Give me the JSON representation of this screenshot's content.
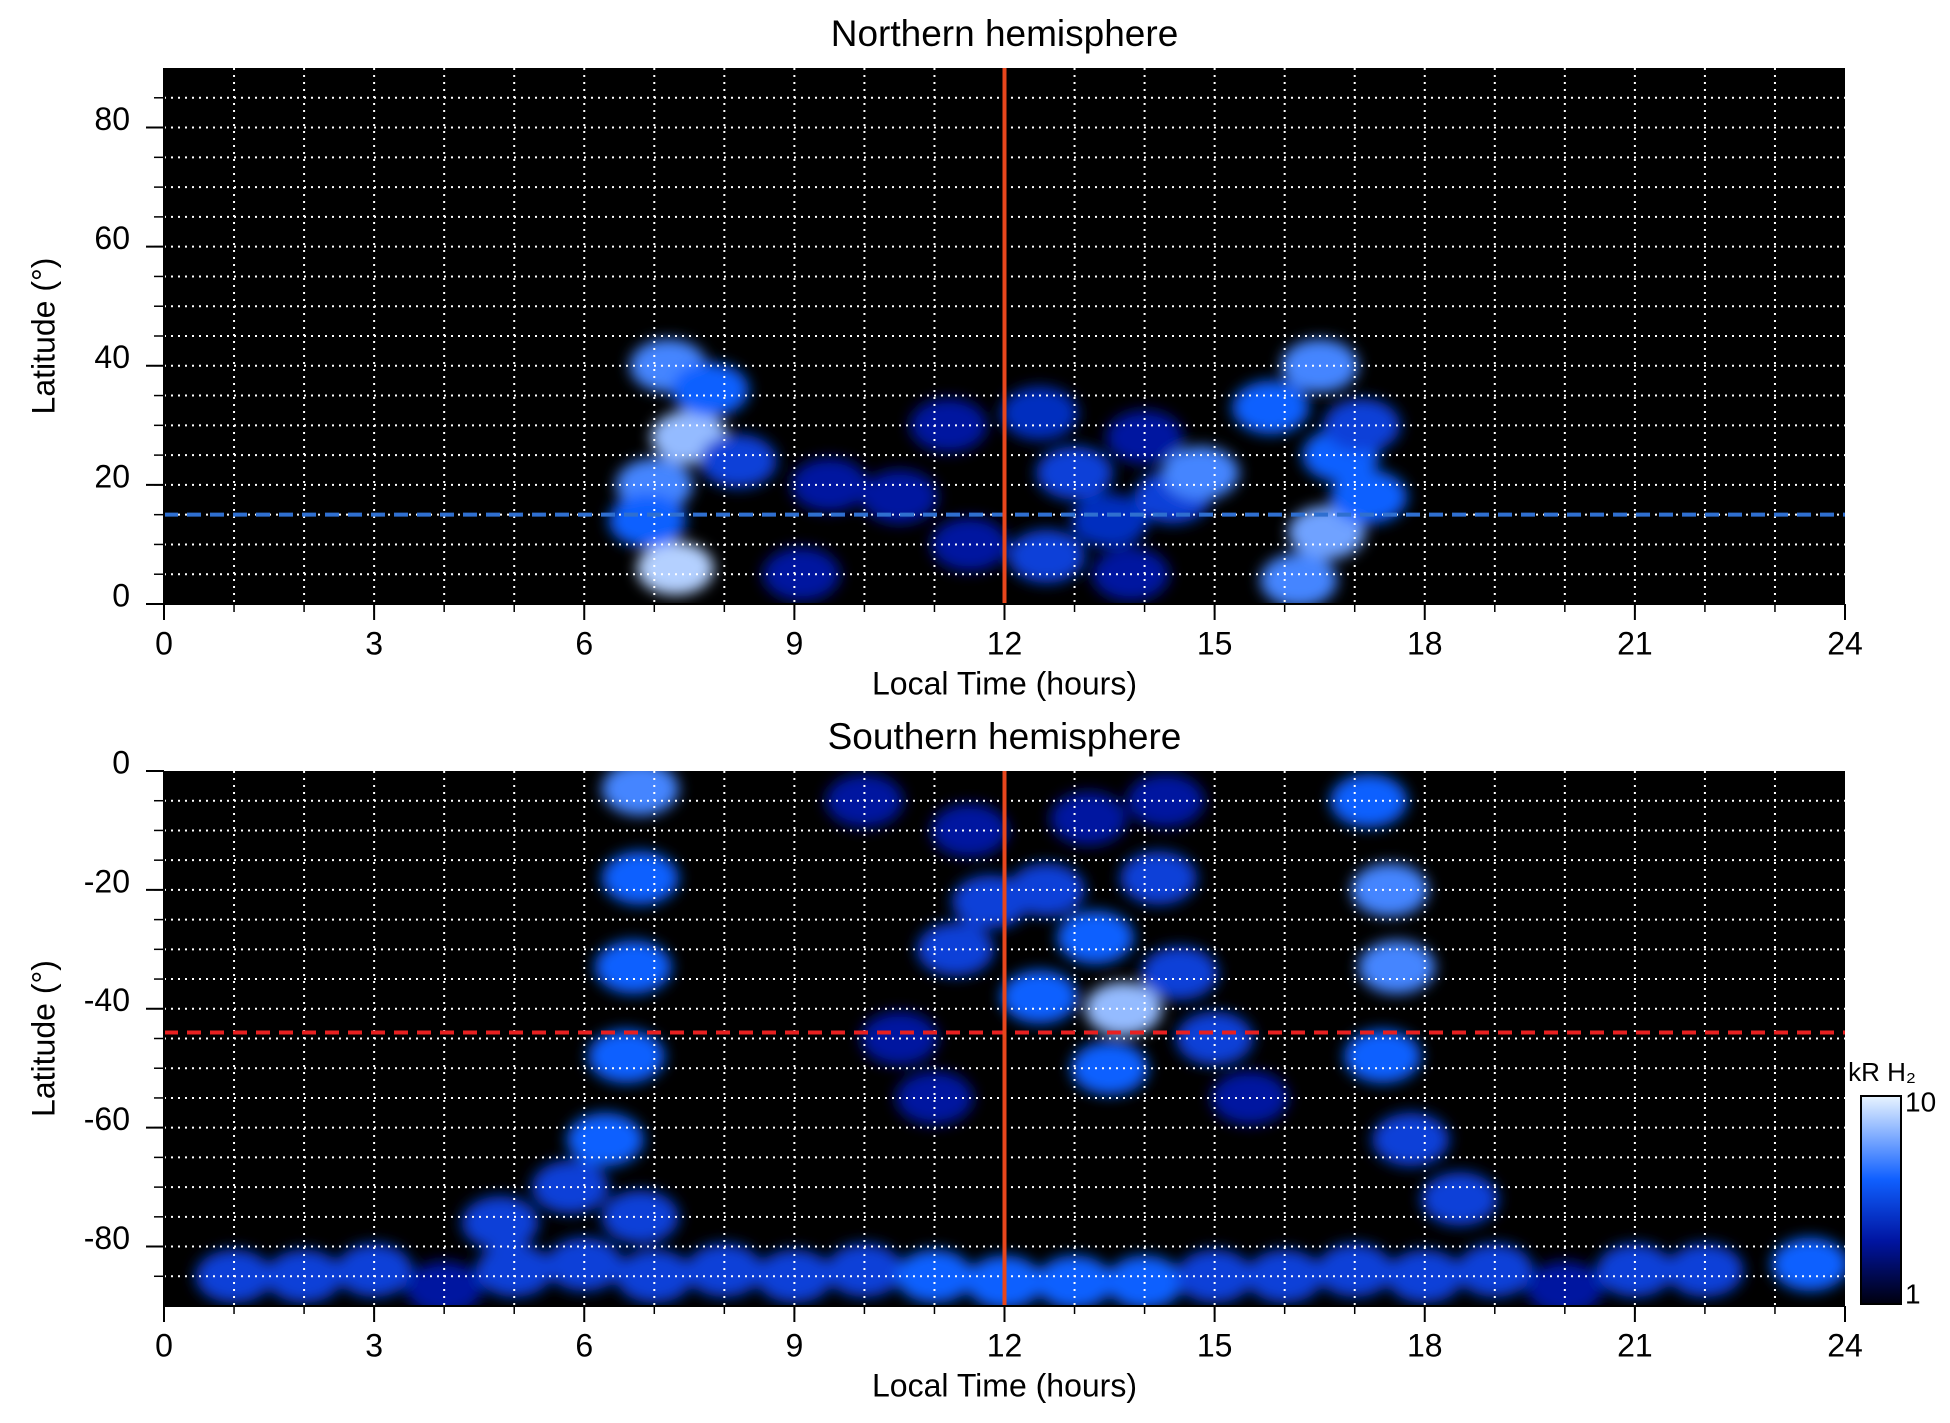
{
  "chart_data": [
    {
      "type": "heatmap",
      "title": "Northern hemisphere",
      "xlabel": "Local Time (hours)",
      "ylabel": "Latitude (°)",
      "xlim": [
        0,
        24
      ],
      "xticks": [
        0,
        3,
        6,
        9,
        12,
        15,
        18,
        21,
        24
      ],
      "ylim": [
        0,
        90
      ],
      "yticks": [
        0,
        20,
        40,
        60,
        80
      ],
      "xgrid": [
        1,
        2,
        3,
        4,
        5,
        6,
        7,
        8,
        9,
        10,
        11,
        12,
        13,
        14,
        15,
        16,
        17,
        18,
        19,
        20,
        21,
        22,
        23
      ],
      "ygrid": [
        5,
        10,
        15,
        20,
        25,
        30,
        35,
        40,
        45,
        50,
        55,
        60,
        65,
        70,
        75,
        80,
        85
      ],
      "clim": [
        1,
        10
      ],
      "vlines": [
        {
          "value": 12,
          "color": "#e8461c",
          "style": "solid"
        }
      ],
      "hlines": [
        {
          "value": 15,
          "color": "#2f6fd0",
          "style": "dashed"
        }
      ],
      "cells": [
        {
          "x": 7.2,
          "y": 40,
          "value": 5
        },
        {
          "x": 7.5,
          "y": 28,
          "value": 7
        },
        {
          "x": 7.0,
          "y": 20,
          "value": 5
        },
        {
          "x": 7.3,
          "y": 6,
          "value": 8
        },
        {
          "x": 6.9,
          "y": 14,
          "value": 4
        },
        {
          "x": 7.8,
          "y": 36,
          "value": 4
        },
        {
          "x": 8.2,
          "y": 24,
          "value": 3
        },
        {
          "x": 9.5,
          "y": 20,
          "value": 2
        },
        {
          "x": 9.1,
          "y": 5,
          "value": 2
        },
        {
          "x": 10.5,
          "y": 18,
          "value": 2
        },
        {
          "x": 11.2,
          "y": 30,
          "value": 2
        },
        {
          "x": 11.5,
          "y": 10,
          "value": 2
        },
        {
          "x": 12.5,
          "y": 32,
          "value": 2.5
        },
        {
          "x": 12.6,
          "y": 8,
          "value": 3
        },
        {
          "x": 13.0,
          "y": 22,
          "value": 3
        },
        {
          "x": 13.5,
          "y": 14,
          "value": 2.5
        },
        {
          "x": 14.0,
          "y": 28,
          "value": 2
        },
        {
          "x": 14.4,
          "y": 18,
          "value": 3
        },
        {
          "x": 14.8,
          "y": 22,
          "value": 5
        },
        {
          "x": 13.8,
          "y": 5,
          "value": 2
        },
        {
          "x": 15.8,
          "y": 33,
          "value": 4
        },
        {
          "x": 16.5,
          "y": 40,
          "value": 5
        },
        {
          "x": 16.8,
          "y": 25,
          "value": 4
        },
        {
          "x": 16.6,
          "y": 12,
          "value": 6
        },
        {
          "x": 16.2,
          "y": 4,
          "value": 5
        },
        {
          "x": 17.2,
          "y": 18,
          "value": 4
        },
        {
          "x": 17.1,
          "y": 30,
          "value": 3
        }
      ]
    },
    {
      "type": "heatmap",
      "title": "Southern hemisphere",
      "xlabel": "Local Time (hours)",
      "ylabel": "Latitude (°)",
      "xlim": [
        0,
        24
      ],
      "xticks": [
        0,
        3,
        6,
        9,
        12,
        15,
        18,
        21,
        24
      ],
      "ylim": [
        -90,
        0
      ],
      "yticks": [
        -80,
        -60,
        -40,
        -20,
        0
      ],
      "xgrid": [
        1,
        2,
        3,
        4,
        5,
        6,
        7,
        8,
        9,
        10,
        11,
        12,
        13,
        14,
        15,
        16,
        17,
        18,
        19,
        20,
        21,
        22,
        23
      ],
      "ygrid": [
        -85,
        -80,
        -75,
        -70,
        -65,
        -60,
        -55,
        -50,
        -45,
        -40,
        -35,
        -30,
        -25,
        -20,
        -15,
        -10,
        -5
      ],
      "clim": [
        1,
        10
      ],
      "vlines": [
        {
          "value": 12,
          "color": "#e8461c",
          "style": "solid"
        }
      ],
      "hlines": [
        {
          "value": -44,
          "color": "#e82020",
          "style": "dashed"
        }
      ],
      "colorbar": {
        "label": "kR H₂",
        "ticks": [
          1,
          10
        ],
        "scale": "log"
      },
      "cells": [
        {
          "x": 6.8,
          "y": -3,
          "value": 5
        },
        {
          "x": 6.8,
          "y": -18,
          "value": 4
        },
        {
          "x": 6.7,
          "y": -33,
          "value": 4
        },
        {
          "x": 6.6,
          "y": -48,
          "value": 4
        },
        {
          "x": 6.3,
          "y": -62,
          "value": 4
        },
        {
          "x": 5.8,
          "y": -70,
          "value": 3
        },
        {
          "x": 4.8,
          "y": -76,
          "value": 3
        },
        {
          "x": 6.8,
          "y": -75,
          "value": 3
        },
        {
          "x": 10.0,
          "y": -5,
          "value": 2
        },
        {
          "x": 11.5,
          "y": -10,
          "value": 2
        },
        {
          "x": 11.8,
          "y": -22,
          "value": 3
        },
        {
          "x": 12.6,
          "y": -20,
          "value": 3
        },
        {
          "x": 13.3,
          "y": -28,
          "value": 4
        },
        {
          "x": 13.7,
          "y": -40,
          "value": 7
        },
        {
          "x": 12.5,
          "y": -38,
          "value": 4
        },
        {
          "x": 11.3,
          "y": -30,
          "value": 3
        },
        {
          "x": 14.2,
          "y": -18,
          "value": 3
        },
        {
          "x": 14.5,
          "y": -34,
          "value": 3
        },
        {
          "x": 15.0,
          "y": -45,
          "value": 3
        },
        {
          "x": 13.5,
          "y": -50,
          "value": 4
        },
        {
          "x": 10.5,
          "y": -45,
          "value": 2
        },
        {
          "x": 11.0,
          "y": -55,
          "value": 2
        },
        {
          "x": 15.5,
          "y": -55,
          "value": 2
        },
        {
          "x": 13.2,
          "y": -8,
          "value": 2
        },
        {
          "x": 14.3,
          "y": -5,
          "value": 2
        },
        {
          "x": 17.2,
          "y": -5,
          "value": 4
        },
        {
          "x": 17.5,
          "y": -20,
          "value": 5
        },
        {
          "x": 17.6,
          "y": -33,
          "value": 5
        },
        {
          "x": 17.4,
          "y": -48,
          "value": 4
        },
        {
          "x": 17.8,
          "y": -62,
          "value": 3
        },
        {
          "x": 18.5,
          "y": -72,
          "value": 3
        },
        {
          "x": 1.0,
          "y": -85,
          "value": 3
        },
        {
          "x": 2.0,
          "y": -85,
          "value": 3
        },
        {
          "x": 3.0,
          "y": -84,
          "value": 3
        },
        {
          "x": 4.0,
          "y": -87,
          "value": 2
        },
        {
          "x": 5.0,
          "y": -84,
          "value": 3
        },
        {
          "x": 6.0,
          "y": -83,
          "value": 3
        },
        {
          "x": 7.0,
          "y": -85,
          "value": 3
        },
        {
          "x": 8.0,
          "y": -84,
          "value": 3
        },
        {
          "x": 9.0,
          "y": -85,
          "value": 3
        },
        {
          "x": 10.0,
          "y": -84,
          "value": 3
        },
        {
          "x": 11.0,
          "y": -85,
          "value": 4
        },
        {
          "x": 12.0,
          "y": -86,
          "value": 4
        },
        {
          "x": 13.0,
          "y": -86,
          "value": 4
        },
        {
          "x": 14.0,
          "y": -86,
          "value": 4
        },
        {
          "x": 15.0,
          "y": -85,
          "value": 3
        },
        {
          "x": 16.0,
          "y": -85,
          "value": 3
        },
        {
          "x": 17.0,
          "y": -84,
          "value": 3
        },
        {
          "x": 18.0,
          "y": -85,
          "value": 3
        },
        {
          "x": 19.0,
          "y": -84,
          "value": 3
        },
        {
          "x": 20.0,
          "y": -87,
          "value": 2
        },
        {
          "x": 21.0,
          "y": -84,
          "value": 3
        },
        {
          "x": 22.0,
          "y": -84,
          "value": 3
        },
        {
          "x": 23.5,
          "y": -83,
          "value": 4
        }
      ]
    }
  ]
}
